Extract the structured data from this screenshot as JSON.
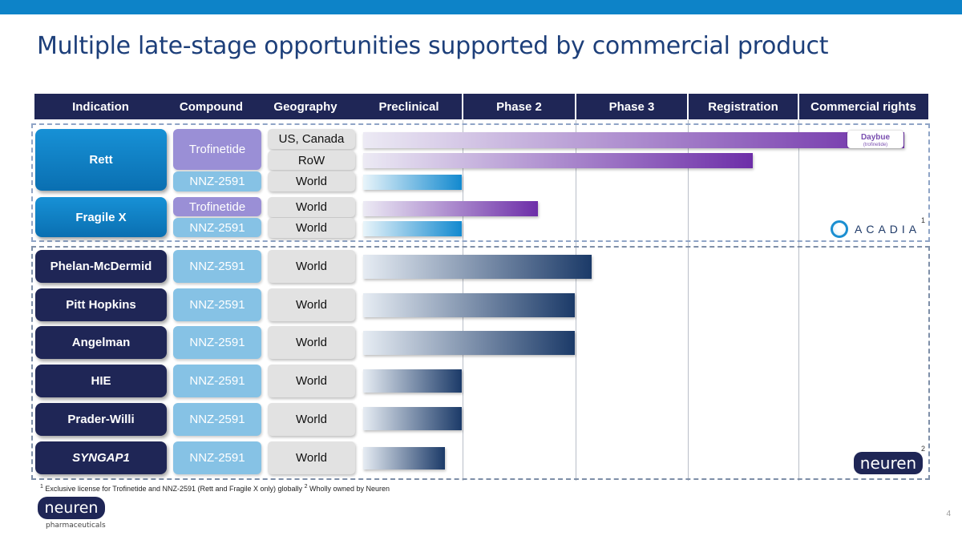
{
  "title": "Multiple late-stage opportunities supported by commercial product",
  "headers": [
    "Indication",
    "Compound",
    "Geography",
    "Preclinical",
    "Phase 2",
    "Phase 3",
    "Registration",
    "Commercial rights"
  ],
  "colors": {
    "top_bar": "#0d83c8",
    "navy": "#1f2656",
    "trofinetide": "#9a8fd6",
    "nnz2591": "#86c2e5",
    "purple_bar": "#6d2ea8",
    "cyan_bar": "#1289cf",
    "navy_bar": "#1b3a68"
  },
  "acadia_group": {
    "rett": {
      "indication": "Rett",
      "rows": [
        {
          "compound": "Trofinetide",
          "geography": "US, Canada",
          "stage": "Commercial rights"
        },
        {
          "compound": "Trofinetide",
          "geography": "RoW",
          "stage": "Registration"
        },
        {
          "compound": "NNZ-2591",
          "geography": "World",
          "stage": "Preclinical"
        }
      ]
    },
    "fragile_x": {
      "indication": "Fragile X",
      "rows": [
        {
          "compound": "Trofinetide",
          "geography": "World",
          "stage": "Phase 2"
        },
        {
          "compound": "NNZ-2591",
          "geography": "World",
          "stage": "Preclinical"
        }
      ]
    },
    "partner_logo": "ACADIA",
    "partner_footnote": "1",
    "product_logo": "Daybue",
    "product_logo_sub": "(trofinetide)"
  },
  "neuren_group": {
    "rows": [
      {
        "indication": "Phelan-McDermid",
        "compound": "NNZ-2591",
        "geography": "World",
        "stage": "Phase 2"
      },
      {
        "indication": "Pitt Hopkins",
        "compound": "NNZ-2591",
        "geography": "World",
        "stage": "Phase 2"
      },
      {
        "indication": "Angelman",
        "compound": "NNZ-2591",
        "geography": "World",
        "stage": "Phase 2"
      },
      {
        "indication": "HIE",
        "compound": "NNZ-2591",
        "geography": "World",
        "stage": "Preclinical"
      },
      {
        "indication": "Prader-Willi",
        "compound": "NNZ-2591",
        "geography": "World",
        "stage": "Preclinical"
      },
      {
        "indication": "SYNGAP1",
        "compound": "NNZ-2591",
        "geography": "World",
        "stage": "Preclinical"
      }
    ],
    "owner_logo": "neuren",
    "owner_footnote": "2"
  },
  "footnote": {
    "mark1": "1",
    "text1": " Exclusive license for Trofinetide and NNZ-2591 (Rett and Fragile X only) globally ",
    "mark2": "2",
    "text2": " Wholly owned by Neuren"
  },
  "logo": {
    "name": "neuren",
    "tagline": "pharmaceuticals"
  },
  "page_number": "4"
}
